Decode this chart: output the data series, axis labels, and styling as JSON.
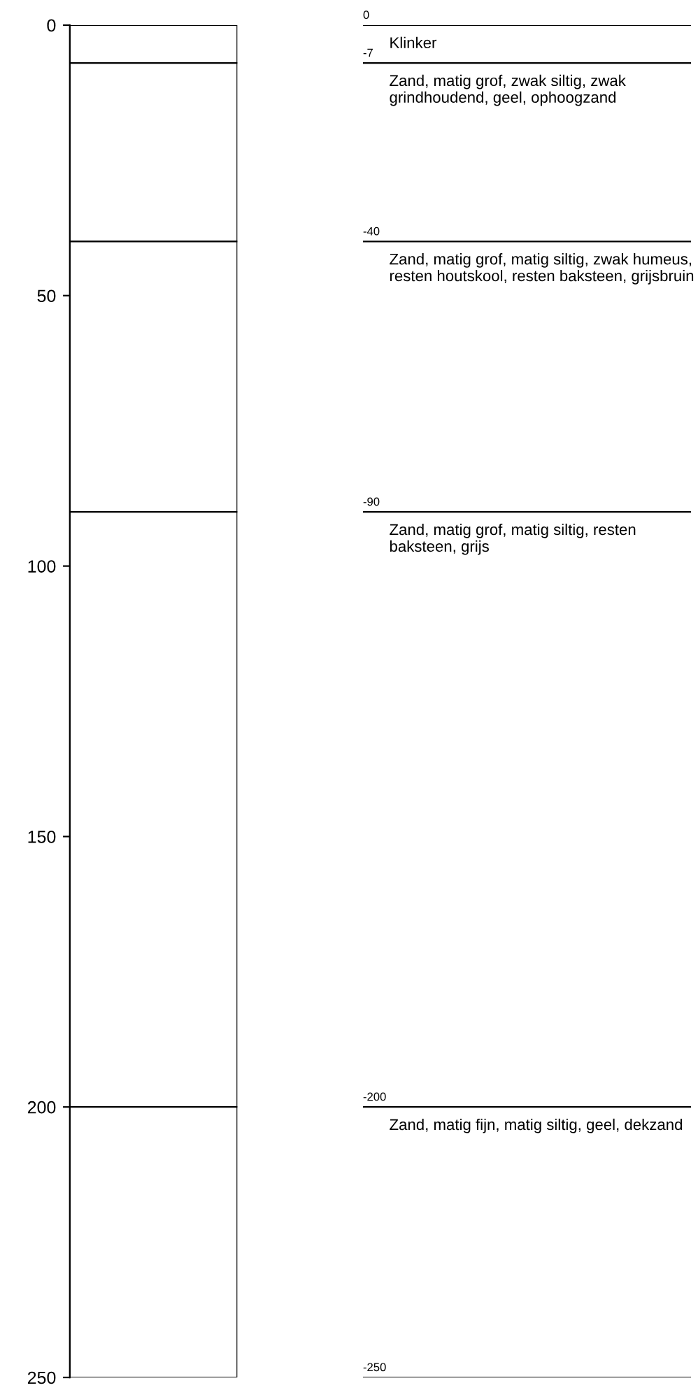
{
  "chart_data": {
    "type": "bar",
    "stacked": true,
    "categories": [
      null
    ],
    "series": [
      {
        "color": "#ffffff",
        "values": [
          7
        ]
      },
      {
        "color": "#ffffff",
        "values": [
          33
        ]
      },
      {
        "color": "#ffffff",
        "values": [
          50
        ]
      },
      {
        "color": "#ffffff",
        "values": [
          110
        ]
      },
      {
        "color": "#ffffff",
        "values": [
          50
        ]
      }
    ],
    "ylim": [
      250,
      0
    ],
    "yticks": [
      0,
      50,
      100,
      150,
      200,
      250
    ],
    "y2lim": [
      -250,
      0
    ],
    "y2ticks": [
      0,
      -7,
      -40,
      -90,
      -200,
      -250
    ],
    "annotations": [
      "Klinker",
      "Zand, matig grof, zwak siltig, zwak grindhoudend, geel, ophoogzand",
      "Zand, matig grof, matig siltig, zwak humeus, resten houtskool, resten baksteen, grijsbruin",
      "Zand, matig grof, matig siltig, resten baksteen, grijs",
      "Zand, matig fijn, matig siltig, geel, dekzand"
    ],
    "grid": false,
    "legend": false
  }
}
